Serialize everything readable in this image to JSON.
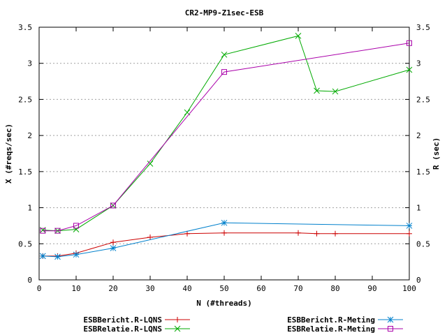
{
  "chart_data": {
    "type": "line",
    "title": "CR2-MP9-Z1sec-ESB",
    "xlabel": "N (#threads)",
    "ylabel": "X (#reqs/sec)",
    "y2label": "R (sec)",
    "xlim": [
      0,
      100
    ],
    "ylim": [
      0,
      3.5
    ],
    "y2lim": [
      0,
      3.5
    ],
    "xticks": [
      0,
      10,
      20,
      30,
      40,
      50,
      60,
      70,
      80,
      90,
      100
    ],
    "yticks": [
      0,
      0.5,
      1,
      1.5,
      2,
      2.5,
      3,
      3.5
    ],
    "xtick_labels": [
      "0",
      "10",
      "20",
      "30",
      "40",
      "50",
      "60",
      "70",
      "80",
      "90",
      "100"
    ],
    "ytick_labels": [
      "0",
      "0.5",
      "1",
      "1.5",
      "2",
      "2.5",
      "3",
      "3.5"
    ],
    "grid": "horizontal dotted",
    "legend_position": "bottom",
    "series": [
      {
        "name": "ESBBericht.R-LQNS",
        "color": "#cc0000",
        "marker": "plus",
        "x": [
          1,
          5,
          10,
          20,
          30,
          40,
          50,
          70,
          75,
          80,
          100
        ],
        "values": [
          0.33,
          0.33,
          0.37,
          0.52,
          0.59,
          0.64,
          0.65,
          0.65,
          0.64,
          0.64,
          0.64
        ]
      },
      {
        "name": "ESBRelatie.R-LQNS",
        "color": "#00aa00",
        "marker": "cross",
        "x": [
          1,
          5,
          10,
          20,
          30,
          40,
          50,
          70,
          75,
          80,
          100
        ],
        "values": [
          0.69,
          0.68,
          0.7,
          1.03,
          1.61,
          2.32,
          3.12,
          3.38,
          2.62,
          2.61,
          2.91
        ]
      },
      {
        "name": "ESBBericht.R-Meting",
        "color": "#0080cc",
        "marker": "star",
        "x": [
          1,
          5,
          10,
          20,
          50,
          100
        ],
        "values": [
          0.33,
          0.32,
          0.35,
          0.44,
          0.79,
          0.75
        ]
      },
      {
        "name": "ESBRelatie.R-Meting",
        "color": "#aa00aa",
        "marker": "square",
        "x": [
          1,
          5,
          10,
          20,
          50,
          100
        ],
        "values": [
          0.68,
          0.68,
          0.75,
          1.03,
          2.88,
          3.28
        ]
      }
    ]
  }
}
